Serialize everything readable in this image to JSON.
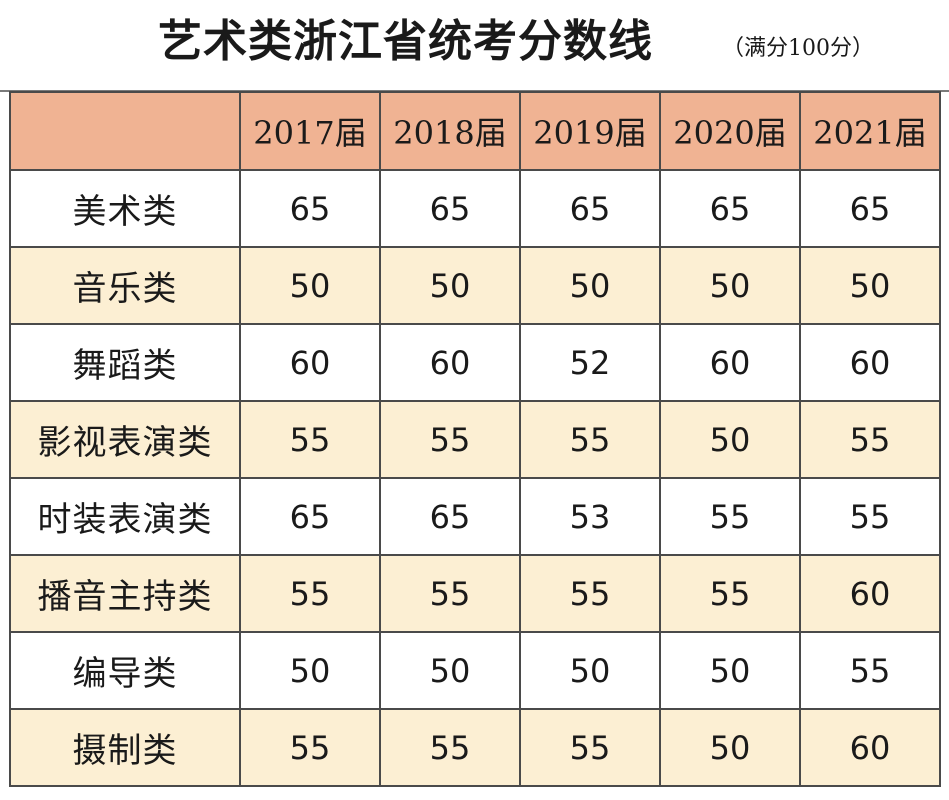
{
  "title": {
    "main": "艺术类浙江省统考分数线",
    "note": "（满分100分）"
  },
  "table": {
    "columns": [
      "",
      "2017届",
      "2018届",
      "2019届",
      "2020届",
      "2021届"
    ],
    "rows": [
      {
        "category": "美术类",
        "values": [
          "65",
          "65",
          "65",
          "65",
          "65"
        ]
      },
      {
        "category": "音乐类",
        "values": [
          "50",
          "50",
          "50",
          "50",
          "50"
        ]
      },
      {
        "category": "舞蹈类",
        "values": [
          "60",
          "60",
          "52",
          "60",
          "60"
        ]
      },
      {
        "category": "影视表演类",
        "values": [
          "55",
          "55",
          "55",
          "50",
          "55"
        ]
      },
      {
        "category": "时装表演类",
        "values": [
          "65",
          "65",
          "53",
          "55",
          "55"
        ]
      },
      {
        "category": "播音主持类",
        "values": [
          "55",
          "55",
          "55",
          "55",
          "60"
        ]
      },
      {
        "category": "编导类",
        "values": [
          "50",
          "50",
          "50",
          "50",
          "55"
        ]
      },
      {
        "category": "摄制类",
        "values": [
          "55",
          "55",
          "55",
          "50",
          "60"
        ]
      }
    ]
  },
  "colors": {
    "header_bg": "#f0b393",
    "stripe_bg": "#fcefd3",
    "grid": "#4a4a4a"
  }
}
